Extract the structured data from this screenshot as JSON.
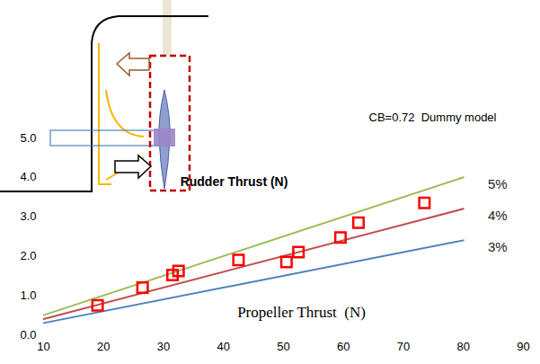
{
  "chart_data": {
    "type": "scatter",
    "x_label": "Propeller Thrust  (N)",
    "y_label": "Rudder Thrust (N)",
    "annotations": [
      "CB=0.72  Dummy model"
    ],
    "x": [
      19,
      26.5,
      31.5,
      32.5,
      42.5,
      50.5,
      52.5,
      59.5,
      62.5,
      73.5
    ],
    "values": [
      0.75,
      1.2,
      1.52,
      1.62,
      1.9,
      1.85,
      2.1,
      2.47,
      2.85,
      3.35
    ],
    "color": "#ff0000",
    "marker": "square",
    "series": [
      {
        "name": "5%",
        "type": "line",
        "color": "#9bbb59",
        "x": [
          10,
          80
        ],
        "values": [
          0.5,
          4.0
        ]
      },
      {
        "name": "4%",
        "type": "line",
        "color": "#c0504d",
        "x": [
          10,
          80
        ],
        "values": [
          0.4,
          3.2
        ]
      },
      {
        "name": "3%",
        "type": "line",
        "color": "#4f81bd",
        "x": [
          10,
          80
        ],
        "values": [
          0.3,
          2.4
        ]
      }
    ],
    "xlim": [
      10,
      90
    ],
    "xticks": [
      10,
      20,
      30,
      40,
      50,
      60,
      70,
      80,
      90
    ],
    "ylim": [
      0,
      5
    ],
    "yticks": [
      {
        "value": 0,
        "label": "0.0"
      },
      {
        "value": 1,
        "label": "1.0"
      },
      {
        "value": 2,
        "label": "2.0"
      },
      {
        "value": 3,
        "label": "3.0"
      },
      {
        "value": 4,
        "label": "4.0"
      },
      {
        "value": 5,
        "label": "5.0"
      }
    ],
    "grid": false
  }
}
